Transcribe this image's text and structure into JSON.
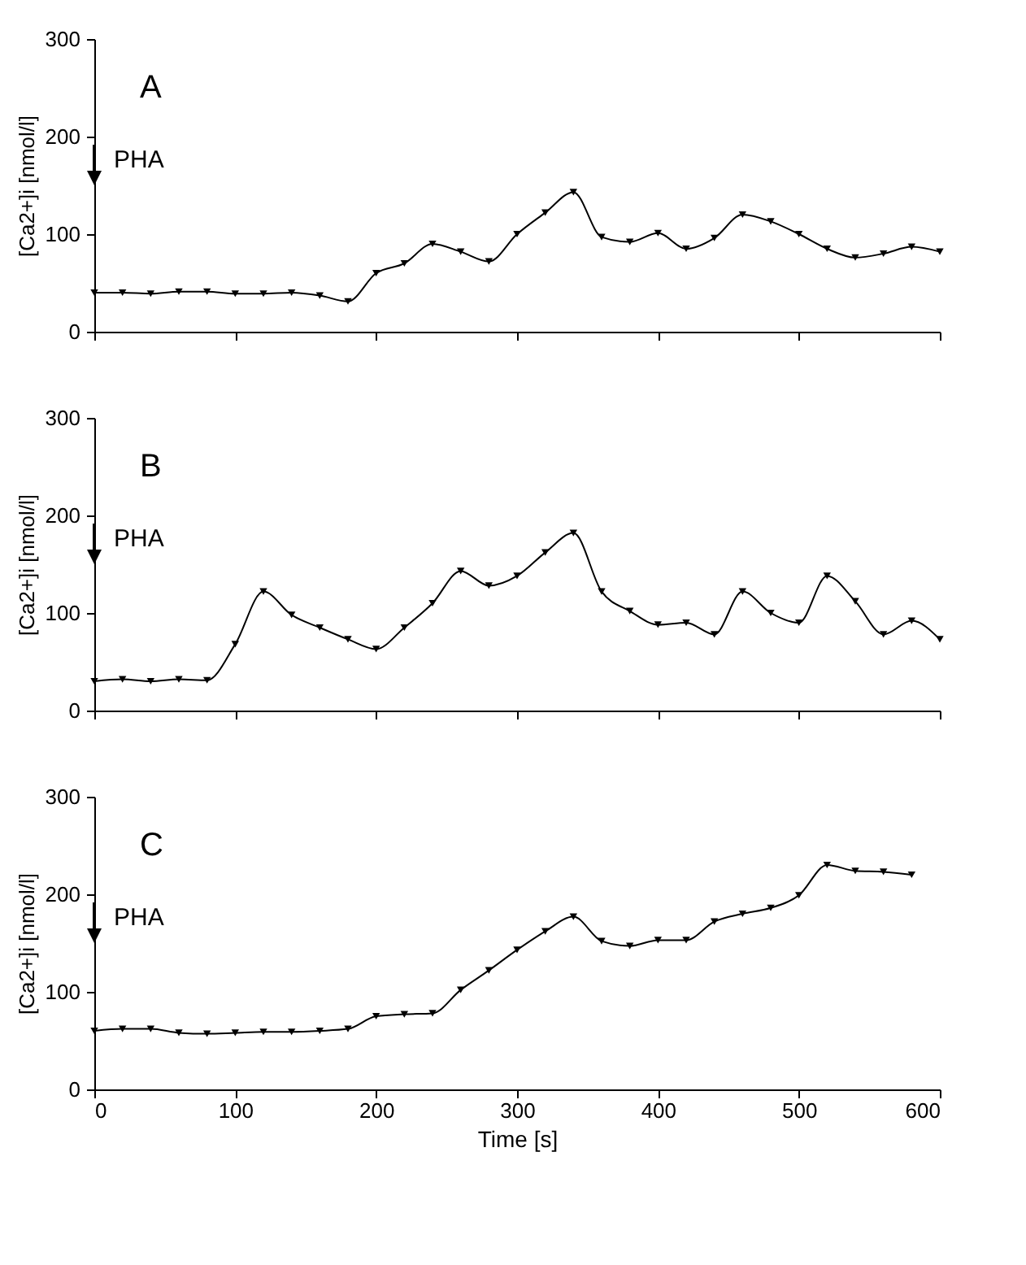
{
  "chart_data": [
    {
      "type": "line",
      "ylabel": "[Ca2+]i [nmol/l]",
      "x": [
        0,
        20,
        40,
        60,
        80,
        100,
        120,
        140,
        160,
        180,
        200,
        220,
        240,
        260,
        280,
        300,
        320,
        340,
        360,
        380,
        400,
        420,
        440,
        460,
        480,
        500,
        520,
        540,
        560,
        580,
        600
      ],
      "series": [
        {
          "color": "#000000",
          "values": [
            40,
            40,
            39,
            41,
            41,
            39,
            39,
            40,
            37,
            31,
            60,
            70,
            90,
            82,
            72,
            100,
            122,
            143,
            97,
            92,
            101,
            85,
            96,
            120,
            113,
            100,
            85,
            76,
            80,
            87,
            82
          ]
        }
      ],
      "xlim": [
        0,
        600
      ],
      "xticks": [
        {
          "value": 0,
          "label": null
        },
        {
          "value": 100,
          "label": null
        },
        {
          "value": 200,
          "label": null
        },
        {
          "value": 300,
          "label": null
        },
        {
          "value": 400,
          "label": null
        },
        {
          "value": 500,
          "label": null
        },
        {
          "value": 600,
          "label": null
        }
      ],
      "ylim": [
        0,
        300
      ],
      "yticks": [
        0,
        100,
        200,
        300
      ],
      "tick_labels": "y",
      "marker": "triangle",
      "line_style": "solid",
      "grid": false,
      "annotations": [
        "A",
        "PHA"
      ]
    },
    {
      "type": "line",
      "ylabel": "[Ca2+]i [nmol/l]",
      "x": [
        0,
        20,
        40,
        60,
        80,
        100,
        120,
        140,
        160,
        180,
        200,
        220,
        240,
        260,
        280,
        300,
        320,
        340,
        360,
        380,
        400,
        420,
        440,
        460,
        480,
        500,
        520,
        540,
        560,
        580,
        600
      ],
      "series": [
        {
          "color": "#000000",
          "values": [
            30,
            32,
            30,
            32,
            31,
            68,
            122,
            98,
            85,
            73,
            63,
            85,
            110,
            143,
            128,
            138,
            162,
            182,
            122,
            102,
            88,
            90,
            78,
            122,
            100,
            90,
            138,
            112,
            78,
            92,
            73
          ]
        }
      ],
      "xlim": [
        0,
        600
      ],
      "xticks": [
        {
          "value": 0,
          "label": null
        },
        {
          "value": 100,
          "label": null
        },
        {
          "value": 200,
          "label": null
        },
        {
          "value": 300,
          "label": null
        },
        {
          "value": 400,
          "label": null
        },
        {
          "value": 500,
          "label": null
        },
        {
          "value": 600,
          "label": null
        }
      ],
      "ylim": [
        0,
        300
      ],
      "yticks": [
        0,
        100,
        200,
        300
      ],
      "tick_labels": "y",
      "marker": "triangle",
      "line_style": "solid",
      "grid": false,
      "annotations": [
        "B",
        "PHA"
      ]
    },
    {
      "type": "line",
      "xlabel": "Time [s]",
      "ylabel": "[Ca2+]i [nmol/l]",
      "x": [
        0,
        20,
        40,
        60,
        80,
        100,
        120,
        140,
        160,
        180,
        200,
        220,
        240,
        260,
        280,
        300,
        320,
        340,
        360,
        380,
        400,
        420,
        440,
        460,
        480,
        500,
        520,
        540,
        560,
        580
      ],
      "series": [
        {
          "color": "#000000",
          "values": [
            60,
            62,
            62,
            58,
            57,
            58,
            59,
            59,
            60,
            62,
            75,
            77,
            78,
            102,
            122,
            143,
            162,
            177,
            152,
            147,
            153,
            153,
            172,
            180,
            186,
            199,
            230,
            224,
            223,
            220
          ]
        }
      ],
      "xlim": [
        0,
        600
      ],
      "xticks": [
        0,
        100,
        200,
        300,
        400,
        500,
        600
      ],
      "ylim": [
        0,
        300
      ],
      "yticks": [
        0,
        100,
        200,
        300
      ],
      "marker": "triangle",
      "line_style": "solid",
      "grid": false,
      "annotations": [
        "C",
        "PHA"
      ]
    }
  ]
}
